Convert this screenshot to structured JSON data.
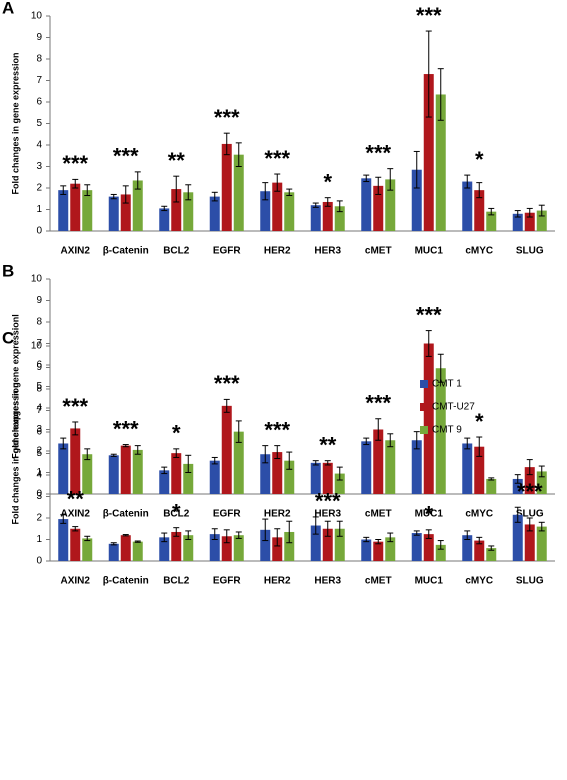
{
  "chart_data": [
    {
      "type": "bar",
      "panel": "A",
      "ylabel": "Fold changes in gene expression",
      "categories": [
        "AXIN2",
        "β-Catenin",
        "BCL2",
        "EGFR",
        "HER2",
        "HER3",
        "cMET",
        "MUC1",
        "cMYC",
        "SLUG"
      ],
      "ylim": [
        0,
        10
      ],
      "yticks": [
        0,
        1,
        2,
        3,
        4,
        5,
        6,
        7,
        8,
        9,
        10
      ],
      "series": [
        {
          "color": "#2c4ea8",
          "values": [
            1.9,
            1.6,
            1.05,
            1.6,
            1.85,
            1.2,
            2.45,
            2.85,
            2.3,
            0.8
          ],
          "errors": [
            0.2,
            0.1,
            0.1,
            0.2,
            0.4,
            0.1,
            0.15,
            0.85,
            0.3,
            0.15
          ]
        },
        {
          "color": "#b0171c",
          "values": [
            2.2,
            1.7,
            1.95,
            4.05,
            2.25,
            1.35,
            2.1,
            7.3,
            1.9,
            0.85
          ],
          "errors": [
            0.2,
            0.4,
            0.6,
            0.5,
            0.4,
            0.2,
            0.4,
            2.0,
            0.35,
            0.2
          ]
        },
        {
          "color": "#76a83a",
          "values": [
            1.9,
            2.35,
            1.8,
            3.55,
            1.8,
            1.15,
            2.4,
            6.35,
            0.9,
            0.95
          ],
          "errors": [
            0.25,
            0.4,
            0.35,
            0.55,
            0.15,
            0.25,
            0.5,
            1.2,
            0.15,
            0.25
          ]
        }
      ],
      "annotations": [
        "***",
        "***",
        "**",
        "***",
        "***",
        "*",
        "***",
        "***",
        "*",
        null
      ]
    },
    {
      "type": "bar",
      "panel": "B",
      "ylabel": "Fold changes in gene expressionl",
      "categories": [
        "AXIN2",
        "β-Catenin",
        "BCL2",
        "EGFR",
        "HER2",
        "HER3",
        "cMET",
        "MUC1",
        "cMYC",
        "SLUG"
      ],
      "ylim": [
        0,
        10
      ],
      "yticks": [
        0,
        1,
        2,
        3,
        4,
        5,
        6,
        7,
        8,
        9,
        10
      ],
      "series": [
        {
          "color": "#2c4ea8",
          "values": [
            2.35,
            1.8,
            1.1,
            1.55,
            1.85,
            1.45,
            2.45,
            2.5,
            2.35,
            0.7
          ],
          "errors": [
            0.25,
            0.05,
            0.15,
            0.15,
            0.4,
            0.1,
            0.15,
            0.4,
            0.25,
            0.2
          ]
        },
        {
          "color": "#b0171c",
          "values": [
            3.05,
            2.25,
            1.9,
            4.1,
            1.95,
            1.45,
            3.0,
            7.0,
            2.2,
            1.25
          ],
          "errors": [
            0.3,
            0.05,
            0.2,
            0.3,
            0.3,
            0.1,
            0.5,
            0.6,
            0.45,
            0.35
          ]
        },
        {
          "color": "#76a83a",
          "values": [
            1.85,
            2.05,
            1.4,
            2.9,
            1.55,
            0.95,
            2.5,
            5.85,
            0.7,
            1.05
          ],
          "errors": [
            0.25,
            0.2,
            0.4,
            0.5,
            0.4,
            0.3,
            0.3,
            0.65,
            0.05,
            0.25
          ]
        }
      ],
      "annotations": [
        "***",
        "***",
        "*",
        "***",
        "***",
        "**",
        "***",
        "***",
        "*",
        null
      ]
    },
    {
      "type": "bar",
      "panel": "C",
      "ylabel": "Fold changes in gene expression",
      "categories": [
        "AXIN2",
        "β-Catenin",
        "BCL2",
        "EGFR",
        "HER2",
        "HER3",
        "cMET",
        "MUC1",
        "cMYC",
        "SLUG"
      ],
      "ylim": [
        0,
        10
      ],
      "yticks": [
        0,
        1,
        2,
        3,
        4,
        5,
        6,
        7,
        8,
        9,
        10
      ],
      "series": [
        {
          "name": "CMT 1",
          "color": "#2c4ea8",
          "values": [
            1.95,
            0.8,
            1.1,
            1.25,
            1.45,
            1.65,
            1.0,
            1.3,
            1.2,
            2.15
          ],
          "errors": [
            0.2,
            0.05,
            0.2,
            0.25,
            0.5,
            0.4,
            0.1,
            0.1,
            0.2,
            0.35
          ]
        },
        {
          "name": "CMT-U27",
          "color": "#b0171c",
          "values": [
            1.5,
            1.2,
            1.35,
            1.15,
            1.1,
            1.5,
            0.9,
            1.25,
            0.95,
            1.7
          ],
          "errors": [
            0.1,
            0.03,
            0.2,
            0.3,
            0.4,
            0.35,
            0.1,
            0.2,
            0.15,
            0.3
          ]
        },
        {
          "name": "CMT 9",
          "color": "#76a83a",
          "values": [
            1.05,
            0.9,
            1.2,
            1.2,
            1.35,
            1.5,
            1.1,
            0.75,
            0.6,
            1.6
          ],
          "errors": [
            0.1,
            0.03,
            0.2,
            0.15,
            0.5,
            0.35,
            0.2,
            0.2,
            0.1,
            0.2
          ]
        }
      ],
      "annotations": [
        "**",
        null,
        "*",
        null,
        null,
        "***",
        null,
        "*",
        null,
        "***"
      ]
    }
  ]
}
